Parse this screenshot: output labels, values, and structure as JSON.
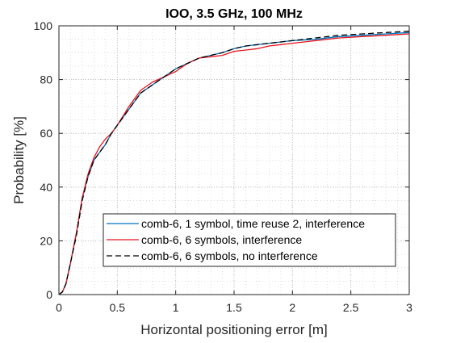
{
  "chart_data": {
    "type": "line",
    "title": "IOO, 3.5 GHz, 100 MHz",
    "xlabel": "Horizontal positioning error [m]",
    "ylabel": "Probability [%]",
    "xlim": [
      0,
      3
    ],
    "ylim": [
      0,
      100
    ],
    "xticks": [
      0,
      0.5,
      1,
      1.5,
      2,
      2.5,
      3
    ],
    "xtick_labels": [
      "0",
      "0.5",
      "1",
      "1.5",
      "2",
      "2.5",
      "3"
    ],
    "yticks": [
      0,
      20,
      40,
      60,
      80,
      100
    ],
    "ytick_labels": [
      "0",
      "20",
      "40",
      "60",
      "80",
      "100"
    ],
    "grid": "dotted, major and minor",
    "legend_location": "lower-right",
    "series": [
      {
        "name": "comb-6, 1 symbol, time reuse 2, interference",
        "color": "#0072BD",
        "style": "solid",
        "x": [
          0,
          0.03,
          0.06,
          0.1,
          0.15,
          0.2,
          0.25,
          0.3,
          0.35,
          0.4,
          0.45,
          0.5,
          0.6,
          0.7,
          0.8,
          0.9,
          1.0,
          1.1,
          1.2,
          1.3,
          1.4,
          1.5,
          1.6,
          1.7,
          1.8,
          1.9,
          2.0,
          2.2,
          2.4,
          2.6,
          2.8,
          3.0
        ],
        "y": [
          0,
          1,
          4,
          12,
          23,
          36,
          44,
          50,
          53,
          56,
          60,
          63,
          69,
          75,
          78,
          81,
          84,
          86,
          88,
          89,
          90,
          91.5,
          92.5,
          93,
          93.5,
          94,
          94.5,
          95,
          96,
          96.5,
          97,
          97.5
        ]
      },
      {
        "name": "comb-6, 6 symbols, interference",
        "color": "#E8141B",
        "style": "solid",
        "x": [
          0,
          0.03,
          0.06,
          0.1,
          0.15,
          0.2,
          0.25,
          0.3,
          0.35,
          0.4,
          0.45,
          0.5,
          0.6,
          0.7,
          0.8,
          0.9,
          1.0,
          1.1,
          1.2,
          1.3,
          1.4,
          1.5,
          1.6,
          1.7,
          1.8,
          1.9,
          2.0,
          2.2,
          2.4,
          2.6,
          2.8,
          3.0
        ],
        "y": [
          0,
          1,
          4,
          12,
          23,
          36,
          45,
          51,
          55,
          58,
          60,
          63,
          70,
          76,
          79,
          81,
          83,
          86,
          88,
          88.5,
          89,
          90.5,
          91,
          91.5,
          92.5,
          93,
          93.5,
          94.5,
          95.5,
          96,
          96.5,
          97
        ]
      },
      {
        "name": "comb-6, 6 symbols, no interference",
        "color": "#000000",
        "style": "dashed",
        "x": [
          0,
          0.03,
          0.06,
          0.1,
          0.15,
          0.2,
          0.25,
          0.3,
          0.35,
          0.4,
          0.45,
          0.5,
          0.6,
          0.7,
          0.8,
          0.9,
          1.0,
          1.1,
          1.2,
          1.3,
          1.4,
          1.5,
          1.6,
          1.7,
          1.8,
          1.9,
          2.0,
          2.2,
          2.4,
          2.6,
          2.8,
          3.0
        ],
        "y": [
          0,
          1,
          4,
          12,
          22,
          35,
          44,
          50,
          53,
          56,
          60,
          63,
          69,
          75,
          78,
          81,
          84,
          86,
          88,
          89,
          90,
          91.5,
          92.5,
          93,
          93.5,
          94,
          94.5,
          95.5,
          96.5,
          97,
          97.5,
          98
        ]
      }
    ]
  }
}
